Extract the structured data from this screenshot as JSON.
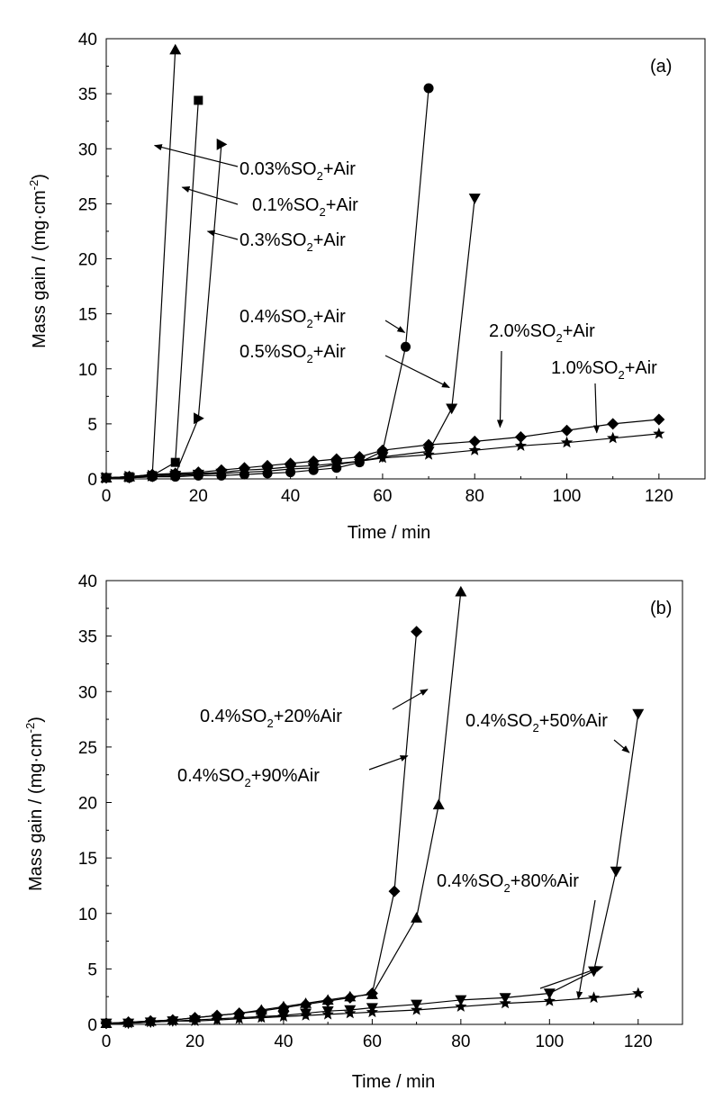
{
  "chart_data": [
    {
      "type": "line",
      "panel_label": "(a)",
      "xlabel": "Time / min",
      "ylabel": "Mass gain / (mg·cm",
      "ylabel_sup": "-2",
      "ylabel_close": ")",
      "xlim": [
        0,
        130
      ],
      "ylim": [
        0,
        40
      ],
      "xticks": [
        "0",
        "20",
        "40",
        "60",
        "80",
        "100",
        "120"
      ],
      "yticks": [
        "0",
        "5",
        "10",
        "15",
        "20",
        "25",
        "30",
        "35",
        "40"
      ],
      "series": [
        {
          "name": "0.03%SO2+Air",
          "marker": "triangle-up",
          "x": [
            0,
            5,
            10,
            15
          ],
          "y": [
            0.1,
            0.2,
            0.4,
            39
          ]
        },
        {
          "name": "0.1%SO2+Air",
          "marker": "square",
          "x": [
            0,
            5,
            10,
            15,
            20
          ],
          "y": [
            0.1,
            0.2,
            0.3,
            1.5,
            34.4
          ]
        },
        {
          "name": "0.3%SO2+Air",
          "marker": "triangle-right",
          "x": [
            0,
            5,
            10,
            15,
            20,
            25
          ],
          "y": [
            0.1,
            0.2,
            0.3,
            0.4,
            5.5,
            30.4
          ]
        },
        {
          "name": "0.4%SO2+Air",
          "marker": "circle",
          "x": [
            0,
            5,
            10,
            15,
            20,
            25,
            30,
            35,
            40,
            45,
            50,
            55,
            60,
            65,
            70
          ],
          "y": [
            0.1,
            0.1,
            0.2,
            0.2,
            0.3,
            0.3,
            0.4,
            0.5,
            0.6,
            0.8,
            1.0,
            1.5,
            2.5,
            12,
            35.5
          ]
        },
        {
          "name": "0.5%SO2+Air",
          "marker": "triangle-down",
          "x": [
            0,
            5,
            10,
            15,
            20,
            25,
            30,
            35,
            40,
            45,
            50,
            55,
            60,
            70,
            75,
            80
          ],
          "y": [
            0.1,
            0.1,
            0.2,
            0.3,
            0.4,
            0.5,
            0.6,
            0.7,
            0.9,
            1.0,
            1.3,
            1.6,
            2.0,
            2.5,
            6.4,
            25.5
          ]
        },
        {
          "name": "2.0%SO2+Air",
          "marker": "diamond",
          "x": [
            0,
            5,
            10,
            15,
            20,
            25,
            30,
            35,
            40,
            45,
            50,
            55,
            60,
            70,
            80,
            90,
            100,
            110,
            120
          ],
          "y": [
            0.1,
            0.2,
            0.4,
            0.5,
            0.6,
            0.8,
            1.0,
            1.2,
            1.4,
            1.6,
            1.8,
            2.0,
            2.6,
            3.1,
            3.4,
            3.8,
            4.4,
            5.0,
            5.4
          ]
        },
        {
          "name": "1.0%SO2+Air",
          "marker": "star",
          "x": [
            0,
            5,
            10,
            15,
            20,
            25,
            30,
            35,
            40,
            45,
            50,
            55,
            60,
            70,
            80,
            90,
            100,
            110,
            120
          ],
          "y": [
            0.1,
            0.2,
            0.3,
            0.4,
            0.5,
            0.6,
            0.8,
            0.9,
            1.1,
            1.2,
            1.4,
            1.6,
            1.9,
            2.2,
            2.6,
            3.0,
            3.3,
            3.7,
            4.1
          ]
        }
      ],
      "annotations": [
        {
          "text": "0.03%SO",
          "sub": "2",
          "tail": "+Air",
          "series": "0.03%SO2+Air"
        },
        {
          "text": "0.1%SO",
          "sub": "2",
          "tail": "+Air",
          "series": "0.1%SO2+Air"
        },
        {
          "text": "0.3%SO",
          "sub": "2",
          "tail": "+Air",
          "series": "0.3%SO2+Air"
        },
        {
          "text": "0.4%SO",
          "sub": "2",
          "tail": "+Air",
          "series": "0.4%SO2+Air"
        },
        {
          "text": "0.5%SO",
          "sub": "2",
          "tail": "+Air",
          "series": "0.5%SO2+Air"
        },
        {
          "text": "2.0%SO",
          "sub": "2",
          "tail": "+Air",
          "series": "2.0%SO2+Air"
        },
        {
          "text": "1.0%SO",
          "sub": "2",
          "tail": "+Air",
          "series": "1.0%SO2+Air"
        }
      ]
    },
    {
      "type": "line",
      "panel_label": "(b)",
      "xlabel": "Time / min",
      "ylabel": "Mass gain / (mg·cm",
      "ylabel_sup": "-2",
      "ylabel_close": ")",
      "xlim": [
        0,
        130
      ],
      "ylim": [
        0,
        40
      ],
      "xticks": [
        "0",
        "20",
        "40",
        "60",
        "80",
        "100",
        "120"
      ],
      "yticks": [
        "0",
        "5",
        "10",
        "15",
        "20",
        "25",
        "30",
        "35",
        "40"
      ],
      "series": [
        {
          "name": "0.4%SO2+90%Air",
          "marker": "diamond",
          "x": [
            0,
            5,
            10,
            15,
            20,
            25,
            30,
            35,
            40,
            45,
            50,
            55,
            60,
            65,
            70
          ],
          "y": [
            0.1,
            0.2,
            0.3,
            0.4,
            0.6,
            0.8,
            1.0,
            1.2,
            1.5,
            1.8,
            2.1,
            2.4,
            2.8,
            12,
            35.4
          ]
        },
        {
          "name": "0.4%SO2+20%Air",
          "marker": "triangle-up",
          "x": [
            0,
            5,
            10,
            15,
            20,
            25,
            30,
            35,
            40,
            45,
            50,
            55,
            60,
            70,
            75,
            80
          ],
          "y": [
            0.1,
            0.2,
            0.3,
            0.4,
            0.6,
            0.8,
            1.0,
            1.3,
            1.6,
            1.9,
            2.2,
            2.5,
            2.7,
            9.6,
            19.8,
            39
          ]
        },
        {
          "name": "0.4%SO2+50%Air",
          "marker": "triangle-down",
          "x": [
            0,
            5,
            10,
            15,
            20,
            25,
            30,
            35,
            40,
            45,
            50,
            55,
            60,
            70,
            80,
            90,
            100,
            110,
            115,
            120
          ],
          "y": [
            0.1,
            0.1,
            0.2,
            0.3,
            0.4,
            0.5,
            0.6,
            0.7,
            0.8,
            1.0,
            1.2,
            1.3,
            1.5,
            1.8,
            2.2,
            2.4,
            2.8,
            4.8,
            13.8,
            28
          ]
        },
        {
          "name": "0.4%SO2+80%Air",
          "marker": "star",
          "x": [
            0,
            5,
            10,
            15,
            20,
            25,
            30,
            35,
            40,
            45,
            50,
            55,
            60,
            70,
            80,
            90,
            100,
            110,
            120
          ],
          "y": [
            0.1,
            0.1,
            0.2,
            0.3,
            0.3,
            0.4,
            0.5,
            0.6,
            0.7,
            0.8,
            0.9,
            1.0,
            1.1,
            1.3,
            1.6,
            1.9,
            2.1,
            2.4,
            2.8
          ]
        }
      ],
      "annotations": [
        {
          "text": "0.4%SO",
          "sub": "2",
          "tail": "+20%Air",
          "series": "0.4%SO2+20%Air"
        },
        {
          "text": "0.4%SO",
          "sub": "2",
          "tail": "+90%Air",
          "series": "0.4%SO2+90%Air"
        },
        {
          "text": "0.4%SO",
          "sub": "2",
          "tail": "+50%Air",
          "series": "0.4%SO2+50%Air"
        },
        {
          "text": "0.4%SO",
          "sub": "2",
          "tail": "+80%Air",
          "series": "0.4%SO2+80%Air"
        }
      ]
    }
  ]
}
